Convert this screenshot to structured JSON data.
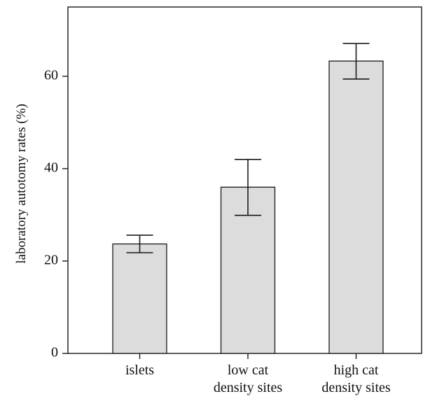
{
  "chart_data": {
    "type": "bar",
    "title": "",
    "xlabel": "",
    "ylabel": "laboratory autotomy rates (%)",
    "categories": [
      [
        "islets"
      ],
      [
        "low cat",
        "density sites"
      ],
      [
        "high cat",
        "density sites"
      ]
    ],
    "values": [
      23.7,
      36.0,
      63.3
    ],
    "error_bars": [
      {
        "low": 21.8,
        "high": 25.6
      },
      {
        "low": 29.9,
        "high": 42.0
      },
      {
        "low": 59.4,
        "high": 67.1
      }
    ],
    "ylim": [
      0,
      75
    ],
    "yticks": [
      0,
      20,
      40,
      60
    ],
    "grid": false,
    "legend": "none",
    "colors": {
      "bar_fill": "#dcdcdc",
      "bar_stroke": "#1a1a1a",
      "axis": "#1a1a1a",
      "error_bar": "#1a1a1a"
    }
  }
}
